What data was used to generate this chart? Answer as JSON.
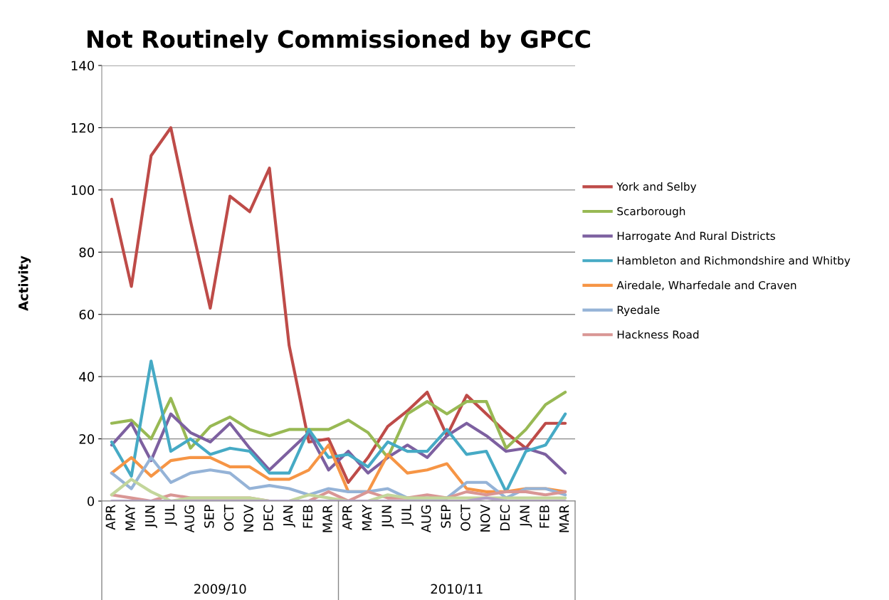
{
  "chart_data": {
    "type": "line",
    "title": "Not Routinely Commissioned by GPCC",
    "ylabel": "Activity",
    "categories": [
      "APR",
      "MAY",
      "JUN",
      "JUL",
      "AUG",
      "SEP",
      "OCT",
      "NOV",
      "DEC",
      "JAN",
      "FEB",
      "MAR",
      "APR",
      "MAY",
      "JUN",
      "JUL",
      "AUG",
      "SEP",
      "OCT",
      "NOV",
      "DEC",
      "JAN",
      "FEB",
      "MAR"
    ],
    "annotations": [
      "2009/10",
      "2010/11"
    ],
    "series": [
      {
        "name": "York and Selby",
        "color": "#be4b48",
        "values": [
          97,
          69,
          111,
          120,
          90,
          62,
          98,
          93,
          107,
          50,
          19,
          20,
          6,
          14,
          24,
          29,
          35,
          21,
          34,
          28,
          22,
          17,
          25,
          25
        ]
      },
      {
        "name": "Scarborough",
        "color": "#98b954",
        "values": [
          25,
          26,
          20,
          33,
          17,
          24,
          27,
          23,
          21,
          23,
          23,
          23,
          26,
          22,
          14,
          28,
          32,
          28,
          32,
          32,
          17,
          23,
          31,
          35
        ]
      },
      {
        "name": "Harrogate And Rural Districts",
        "color": "#7d60a0",
        "values": [
          18,
          25,
          13,
          28,
          22,
          19,
          25,
          17,
          10,
          16,
          22,
          10,
          16,
          9,
          14,
          18,
          14,
          21,
          25,
          21,
          16,
          17,
          15,
          9
        ]
      },
      {
        "name": "Hambleton and Richmondshire and Whitby",
        "color": "#46aac5",
        "values": [
          19,
          8,
          45,
          16,
          20,
          15,
          17,
          16,
          9,
          9,
          23,
          14,
          15,
          11,
          19,
          16,
          16,
          23,
          15,
          16,
          3,
          16,
          18,
          28
        ]
      },
      {
        "name": "Airedale, Wharfedale and Craven",
        "color": "#f69545",
        "values": [
          9,
          14,
          8,
          13,
          14,
          14,
          11,
          11,
          7,
          7,
          10,
          18,
          3,
          3,
          15,
          9,
          10,
          12,
          4,
          3,
          3,
          4,
          4,
          3
        ]
      },
      {
        "name": "Ryedale",
        "color": "#95b3d7",
        "values": [
          9,
          4,
          14,
          6,
          9,
          10,
          9,
          4,
          5,
          4,
          2,
          4,
          3,
          3,
          4,
          1,
          1,
          1,
          6,
          6,
          1,
          4,
          4,
          2
        ]
      },
      {
        "name": "Hackness Road",
        "color": "#d99694",
        "values": [
          2,
          1,
          0,
          2,
          1,
          1,
          1,
          1,
          0,
          0,
          0,
          3,
          0,
          3,
          1,
          1,
          2,
          1,
          3,
          2,
          3,
          3,
          2,
          3
        ]
      },
      {
        "color": "#c3d69b",
        "values": [
          2,
          7,
          3,
          0,
          1,
          1,
          1,
          1,
          0,
          0,
          2,
          1,
          0,
          0,
          2,
          1,
          1,
          1,
          1,
          1,
          1,
          1,
          1,
          1
        ]
      },
      {
        "color": "#b3a2c7",
        "values": [
          0,
          0,
          0,
          0,
          0,
          0,
          0,
          0,
          0,
          0,
          0,
          0,
          0,
          0,
          0,
          0,
          0,
          0,
          0,
          1,
          0,
          0,
          0,
          0
        ]
      }
    ],
    "ylim": [
      0,
      140
    ],
    "yticks": [
      0,
      20,
      40,
      60,
      80,
      100,
      120,
      140
    ],
    "grid": "y",
    "legend": "right"
  }
}
